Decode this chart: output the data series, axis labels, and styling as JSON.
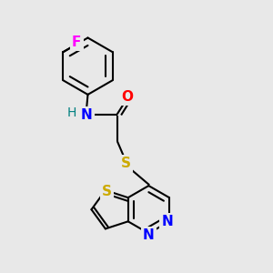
{
  "background_color": "#e8e8e8",
  "bond_color": "#000000",
  "atom_colors": {
    "N": "#0000ff",
    "O": "#ff0000",
    "S_thioether": "#ccaa00",
    "S_thiophene": "#ccaa00",
    "F": "#ff00ff",
    "H": "#008080",
    "C": "#000000"
  },
  "font_size": 11,
  "figsize": [
    3.0,
    3.0
  ],
  "dpi": 100
}
